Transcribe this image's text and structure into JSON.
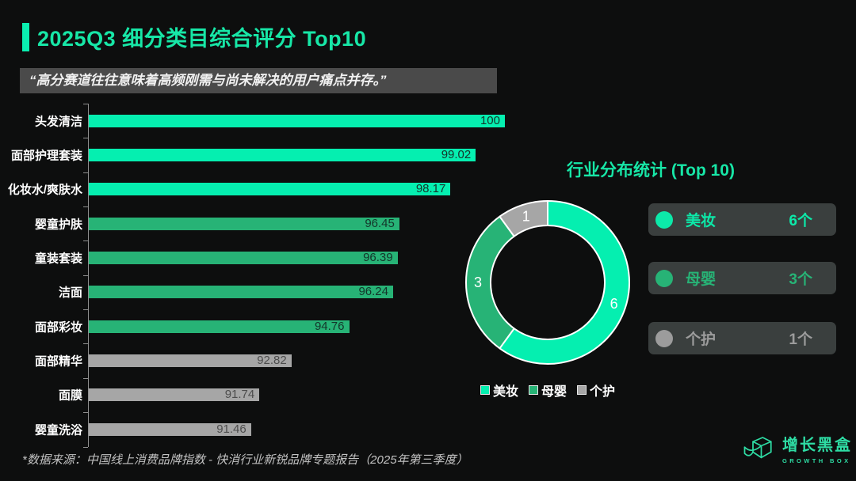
{
  "header": {
    "title": "2025Q3 细分类目综合评分 Top10"
  },
  "quote": {
    "text": "“高分赛道往往意味着高频刚需与尚未解决的用户痛点并存。”"
  },
  "chart_data": [
    {
      "type": "bar",
      "orientation": "horizontal",
      "title": "",
      "xlabel": "",
      "ylabel": "",
      "categories": [
        "头发清洁",
        "面部护理套装",
        "化妆水/爽肤水",
        "婴童护肤",
        "童装套装",
        "洁面",
        "面部彩妆",
        "面部精华",
        "面膜",
        "婴童洗浴"
      ],
      "values": [
        100,
        99.02,
        98.17,
        96.45,
        96.39,
        96.24,
        94.76,
        92.82,
        91.74,
        91.46
      ],
      "bar_colors": [
        "#05EFB0",
        "#05EFB0",
        "#05EFB0",
        "#27B376",
        "#27B376",
        "#27B376",
        "#27B376",
        "#A6A6A6",
        "#A6A6A6",
        "#A6A6A6"
      ],
      "value_label_colors": [
        "#16332A",
        "#16332A",
        "#16332A",
        "#14352A",
        "#14352A",
        "#14352A",
        "#14352A",
        "#4d4d4d",
        "#4d4d4d",
        "#4d4d4d"
      ],
      "xlim": [
        86,
        100
      ],
      "grid": false,
      "value_labels": true
    },
    {
      "type": "pie",
      "donut": true,
      "title": "行业分布统计 (Top 10)",
      "labels": [
        "美妆",
        "母婴",
        "个护"
      ],
      "values": [
        6,
        3,
        1
      ],
      "colors": [
        "#05EFB0",
        "#27B376",
        "#A6A6A6"
      ],
      "separator_color": "#ffffff",
      "start_angle_deg": 0,
      "direction": "clockwise",
      "legend_position": "bottom",
      "legend": [
        "美妆",
        "母婴",
        "个护"
      ]
    }
  ],
  "stats": {
    "items": [
      {
        "label": "美妆",
        "count": "6个",
        "color": "#0CE9A9"
      },
      {
        "label": "母婴",
        "count": "3个",
        "color": "#27B376"
      },
      {
        "label": "个护",
        "count": "1个",
        "color": "#9C9C9C"
      }
    ]
  },
  "footer": {
    "source": "*数据来源：中国线上消费品牌指数 - 快消行业新锐品牌专题报告（2025年第三季度）"
  },
  "logo": {
    "name": "增长黑盒",
    "subtitle": "GROWTH BOX",
    "color": "#2EDCA4"
  }
}
